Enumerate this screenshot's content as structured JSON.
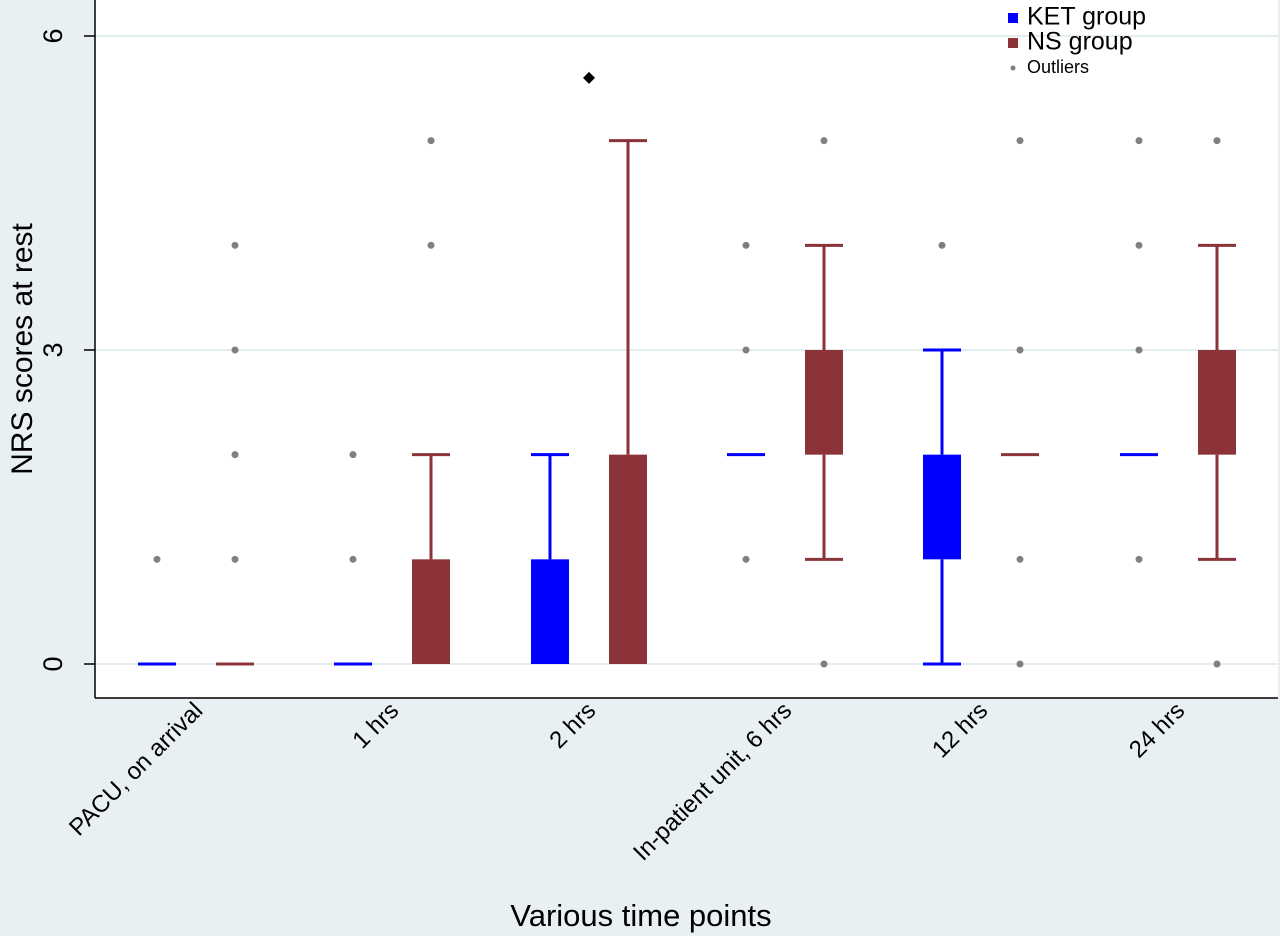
{
  "chart_data": {
    "type": "box",
    "categories": [
      "PACU, on arrival",
      "1 hrs",
      "2 hrs",
      "In-patient unit, 6 hrs",
      "12 hrs",
      "24 hrs"
    ],
    "xlabel": "Various time points",
    "ylabel": "NRS scores at rest",
    "ylim": [
      0,
      6
    ],
    "yticks": [
      0,
      3,
      6
    ],
    "grid": true,
    "legend_position": "top-right",
    "legend": [
      {
        "label": "KET group",
        "symbol": "square",
        "color": "#0000ff"
      },
      {
        "label": "NS group",
        "symbol": "square",
        "color": "#8b3339"
      },
      {
        "label": "Outliers",
        "symbol": "dot",
        "color": "#808080"
      }
    ],
    "series": [
      {
        "name": "KET group",
        "color": "#0000ff",
        "boxes": [
          {
            "whisker_low": 0,
            "q1": 0,
            "median": 0,
            "q3": 0,
            "whisker_high": 0,
            "outliers": [
              1
            ]
          },
          {
            "whisker_low": 0,
            "q1": 0,
            "median": 0,
            "q3": 0,
            "whisker_high": 0,
            "outliers": [
              1,
              2
            ]
          },
          {
            "whisker_low": 0,
            "q1": 0,
            "median": 0,
            "q3": 1,
            "whisker_high": 2,
            "outliers": []
          },
          {
            "whisker_low": 2,
            "q1": 2,
            "median": 2,
            "q3": 2,
            "whisker_high": 2,
            "outliers": [
              1,
              3,
              4
            ]
          },
          {
            "whisker_low": 0,
            "q1": 1,
            "median": 2,
            "q3": 2,
            "whisker_high": 3,
            "outliers": [
              4
            ]
          },
          {
            "whisker_low": 2,
            "q1": 2,
            "median": 2,
            "q3": 2,
            "whisker_high": 2,
            "outliers": [
              1,
              3,
              4,
              5
            ]
          }
        ]
      },
      {
        "name": "NS group",
        "color": "#8b3339",
        "boxes": [
          {
            "whisker_low": 0,
            "q1": 0,
            "median": 0,
            "q3": 0,
            "whisker_high": 0,
            "outliers": [
              1,
              2,
              3,
              4
            ]
          },
          {
            "whisker_low": 0,
            "q1": 0,
            "median": 0,
            "q3": 1,
            "whisker_high": 2,
            "outliers": [
              4,
              5
            ]
          },
          {
            "whisker_low": 0,
            "q1": 0,
            "median": 0,
            "q3": 2,
            "whisker_high": 5,
            "outliers": []
          },
          {
            "whisker_low": 1,
            "q1": 2,
            "median": 2,
            "q3": 3,
            "whisker_high": 4,
            "outliers": [
              0,
              5
            ]
          },
          {
            "whisker_low": 2,
            "q1": 2,
            "median": 2,
            "q3": 2,
            "whisker_high": 2,
            "outliers": [
              0,
              1,
              3,
              5
            ]
          },
          {
            "whisker_low": 1,
            "q1": 2,
            "median": 2,
            "q3": 3,
            "whisker_high": 4,
            "outliers": [
              0,
              5
            ]
          }
        ]
      }
    ],
    "annotations": [
      {
        "symbol": "diamond",
        "category": "2 hrs",
        "y": 5.6,
        "color": "#000000"
      }
    ]
  }
}
